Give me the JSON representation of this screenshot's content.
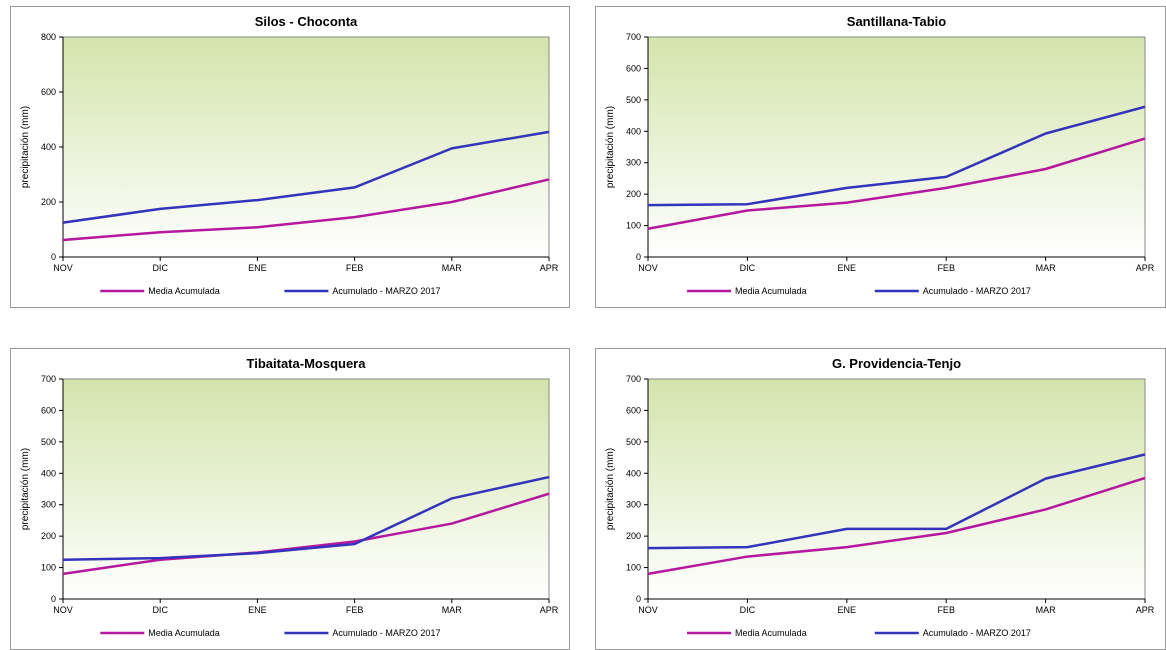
{
  "chart_data": [
    {
      "type": "line",
      "title": "Silos - Choconta",
      "ylabel": "precipitación (mm)",
      "xlabel": "",
      "categories": [
        "NOV",
        "DIC",
        "ENE",
        "FEB",
        "MAR",
        "APR"
      ],
      "ylim": [
        0,
        800
      ],
      "yticks": [
        0,
        200,
        400,
        600,
        800
      ],
      "series": [
        {
          "name": "Media Acumulada",
          "color": "#b5179e",
          "values": [
            62,
            90,
            108,
            145,
            200,
            282
          ]
        },
        {
          "name": "Acumulado  - MARZO 2017",
          "color": "#3333bb",
          "values": [
            125,
            175,
            207,
            253,
            395,
            455
          ]
        }
      ],
      "legend": "bottom"
    },
    {
      "type": "line",
      "title": "Santillana-Tabio",
      "ylabel": "precipitación (mm)",
      "xlabel": "",
      "categories": [
        "NOV",
        "DIC",
        "ENE",
        "FEB",
        "MAR",
        "APR"
      ],
      "ylim": [
        0,
        700
      ],
      "yticks": [
        0,
        100,
        200,
        300,
        400,
        500,
        600,
        700
      ],
      "series": [
        {
          "name": "Media Acumulada",
          "color": "#b5179e",
          "values": [
            90,
            148,
            173,
            220,
            280,
            377
          ]
        },
        {
          "name": "Acumulado  - MARZO 2017",
          "color": "#3333bb",
          "values": [
            165,
            168,
            220,
            255,
            393,
            478
          ]
        }
      ],
      "legend": "bottom"
    },
    {
      "type": "line",
      "title": "Tibaitata-Mosquera",
      "ylabel": "precipitación (mm)",
      "xlabel": "",
      "categories": [
        "NOV",
        "DIC",
        "ENE",
        "FEB",
        "MAR",
        "APR"
      ],
      "ylim": [
        0,
        700
      ],
      "yticks": [
        0,
        100,
        200,
        300,
        400,
        500,
        600,
        700
      ],
      "series": [
        {
          "name": "Media Acumulada",
          "color": "#b5179e",
          "values": [
            80,
            125,
            148,
            183,
            240,
            335
          ]
        },
        {
          "name": "Acumulado  - MARZO 2017",
          "color": "#3333bb",
          "values": [
            125,
            130,
            146,
            175,
            320,
            388
          ]
        }
      ],
      "legend": "bottom"
    },
    {
      "type": "line",
      "title": "G. Providencia-Tenjo",
      "ylabel": "precipitación (mm)",
      "xlabel": "",
      "categories": [
        "NOV",
        "DIC",
        "ENE",
        "FEB",
        "MAR",
        "APR"
      ],
      "ylim": [
        0,
        700
      ],
      "yticks": [
        0,
        100,
        200,
        300,
        400,
        500,
        600,
        700
      ],
      "series": [
        {
          "name": "Media Acumulada",
          "color": "#b5179e",
          "values": [
            80,
            135,
            165,
            210,
            285,
            385
          ]
        },
        {
          "name": "Acumulado  - MARZO 2017",
          "color": "#3333bb",
          "values": [
            162,
            165,
            223,
            223,
            383,
            460
          ]
        }
      ],
      "legend": "bottom"
    }
  ]
}
